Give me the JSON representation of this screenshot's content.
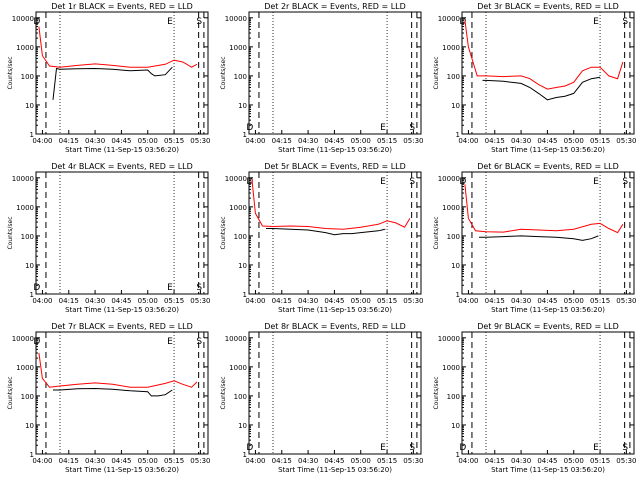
{
  "colors": {
    "events": "#000000",
    "lld": "#ff0000",
    "axes": "#000000"
  },
  "common": {
    "xlabel": "Start Time (11-Sep-15 03:56:20)",
    "ylabel": "Counts/sec",
    "x_tick_labels": [
      "04:00",
      "04:15",
      "04:30",
      "04:45",
      "05:00",
      "05:15",
      "05:30"
    ],
    "y_tick_labels": [
      "1",
      "10",
      "100",
      "1000",
      "10000"
    ]
  },
  "chart_data": [
    {
      "type": "line",
      "title": "Det 1r BLACK = Events, RED = LLD",
      "ylim": [
        1,
        10000
      ],
      "yscale": "log",
      "empty": false,
      "markers": [
        {
          "x": "04:00",
          "label": "D"
        },
        {
          "x": "05:15",
          "label": "E"
        },
        {
          "x": "05:30",
          "label": "S"
        }
      ],
      "series": [
        {
          "name": "LLD",
          "color": "#ff0000",
          "x": [
            "03:58",
            "04:00",
            "04:04",
            "04:10",
            "04:20",
            "04:30",
            "04:40",
            "04:50",
            "05:00",
            "05:10",
            "05:15",
            "05:20",
            "05:25",
            "05:28"
          ],
          "values": [
            5000,
            500,
            220,
            200,
            230,
            260,
            230,
            200,
            200,
            250,
            350,
            300,
            200,
            250
          ]
        },
        {
          "name": "Events",
          "color": "#000000",
          "x": [
            "04:06",
            "04:08",
            "04:10",
            "04:20",
            "04:30",
            "04:40",
            "04:50",
            "05:00",
            "05:02",
            "05:04",
            "05:10",
            "05:14"
          ],
          "values": [
            15,
            180,
            170,
            175,
            180,
            170,
            150,
            160,
            120,
            100,
            110,
            200
          ]
        }
      ]
    },
    {
      "type": "line",
      "title": "Det 2r BLACK = Events, RED = LLD",
      "ylim": [
        1,
        10000
      ],
      "yscale": "log",
      "empty": true,
      "markers": [
        {
          "x": "04:00",
          "label": "D"
        },
        {
          "x": "05:15",
          "label": "E"
        },
        {
          "x": "05:30",
          "label": "S"
        }
      ],
      "series": []
    },
    {
      "type": "line",
      "title": "Det 3r BLACK = Events, RED = LLD",
      "ylim": [
        1,
        10000
      ],
      "yscale": "log",
      "empty": false,
      "markers": [
        {
          "x": "04:00",
          "label": "D"
        },
        {
          "x": "05:15",
          "label": "E"
        },
        {
          "x": "05:30",
          "label": "S"
        }
      ],
      "series": [
        {
          "name": "LLD",
          "color": "#ff0000",
          "x": [
            "03:58",
            "04:00",
            "04:05",
            "04:10",
            "04:20",
            "04:30",
            "04:35",
            "04:40",
            "04:45",
            "04:50",
            "04:55",
            "05:00",
            "05:05",
            "05:10",
            "05:15",
            "05:20",
            "05:25",
            "05:28"
          ],
          "values": [
            8000,
            1000,
            100,
            100,
            95,
            100,
            80,
            50,
            35,
            40,
            45,
            60,
            150,
            200,
            200,
            100,
            80,
            300
          ]
        },
        {
          "name": "Events",
          "color": "#000000",
          "x": [
            "04:08",
            "04:10",
            "04:20",
            "04:30",
            "04:35",
            "04:40",
            "04:45",
            "04:50",
            "04:55",
            "05:00",
            "05:05",
            "05:10",
            "05:15"
          ],
          "values": [
            70,
            70,
            65,
            55,
            40,
            25,
            15,
            18,
            20,
            25,
            60,
            80,
            90
          ]
        }
      ]
    },
    {
      "type": "line",
      "title": "Det 4r BLACK = Events, RED = LLD",
      "ylim": [
        1,
        10000
      ],
      "yscale": "log",
      "empty": true,
      "markers": [
        {
          "x": "04:00",
          "label": "D"
        },
        {
          "x": "05:15",
          "label": "E"
        },
        {
          "x": "05:30",
          "label": "S"
        }
      ],
      "series": []
    },
    {
      "type": "line",
      "title": "Det 5r BLACK = Events, RED = LLD",
      "ylim": [
        1,
        10000
      ],
      "yscale": "log",
      "empty": false,
      "markers": [
        {
          "x": "04:00",
          "label": "D"
        },
        {
          "x": "05:15",
          "label": "E"
        },
        {
          "x": "05:30",
          "label": "S"
        }
      ],
      "series": [
        {
          "name": "LLD",
          "color": "#ff0000",
          "x": [
            "03:58",
            "04:00",
            "04:04",
            "04:10",
            "04:20",
            "04:30",
            "04:40",
            "04:50",
            "05:00",
            "05:10",
            "05:15",
            "05:20",
            "05:25",
            "05:28"
          ],
          "values": [
            9000,
            600,
            220,
            210,
            220,
            210,
            180,
            170,
            200,
            250,
            330,
            280,
            200,
            400
          ]
        },
        {
          "name": "Events",
          "color": "#000000",
          "x": [
            "04:06",
            "04:10",
            "04:20",
            "04:30",
            "04:40",
            "04:45",
            "04:50",
            "04:55",
            "05:00",
            "05:10",
            "05:14"
          ],
          "values": [
            180,
            180,
            170,
            160,
            130,
            110,
            120,
            120,
            130,
            150,
            170
          ]
        }
      ]
    },
    {
      "type": "line",
      "title": "Det 6r BLACK = Events, RED = LLD",
      "ylim": [
        1,
        10000
      ],
      "yscale": "log",
      "empty": false,
      "markers": [
        {
          "x": "04:00",
          "label": "D"
        },
        {
          "x": "05:15",
          "label": "E"
        },
        {
          "x": "05:30",
          "label": "S"
        }
      ],
      "series": [
        {
          "name": "LLD",
          "color": "#ff0000",
          "x": [
            "03:58",
            "04:00",
            "04:04",
            "04:10",
            "04:20",
            "04:30",
            "04:40",
            "04:50",
            "05:00",
            "05:10",
            "05:15",
            "05:20",
            "05:25",
            "05:28"
          ],
          "values": [
            6000,
            400,
            150,
            140,
            135,
            170,
            160,
            150,
            170,
            250,
            270,
            180,
            130,
            250
          ]
        },
        {
          "name": "Events",
          "color": "#000000",
          "x": [
            "04:06",
            "04:10",
            "04:20",
            "04:30",
            "04:40",
            "04:50",
            "05:00",
            "05:05",
            "05:10",
            "05:14"
          ],
          "values": [
            90,
            90,
            95,
            100,
            95,
            90,
            80,
            70,
            80,
            100
          ]
        }
      ]
    },
    {
      "type": "line",
      "title": "Det 7r BLACK = Events, RED = LLD",
      "ylim": [
        1,
        10000
      ],
      "yscale": "log",
      "empty": false,
      "markers": [
        {
          "x": "04:00",
          "label": "D"
        },
        {
          "x": "05:15",
          "label": "E"
        },
        {
          "x": "05:30",
          "label": "S"
        }
      ],
      "series": [
        {
          "name": "LLD",
          "color": "#ff0000",
          "x": [
            "03:58",
            "04:00",
            "04:04",
            "04:10",
            "04:20",
            "04:30",
            "04:40",
            "04:50",
            "05:00",
            "05:10",
            "05:15",
            "05:20",
            "05:25",
            "05:28"
          ],
          "values": [
            3000,
            400,
            200,
            220,
            250,
            280,
            250,
            200,
            200,
            270,
            330,
            250,
            200,
            300
          ]
        },
        {
          "name": "Events",
          "color": "#000000",
          "x": [
            "04:06",
            "04:10",
            "04:20",
            "04:30",
            "04:40",
            "04:50",
            "05:00",
            "05:02",
            "05:06",
            "05:10",
            "05:14"
          ],
          "values": [
            160,
            160,
            175,
            180,
            170,
            150,
            140,
            100,
            100,
            110,
            160
          ]
        }
      ]
    },
    {
      "type": "line",
      "title": "Det 8r BLACK = Events, RED = LLD",
      "ylim": [
        1,
        10000
      ],
      "yscale": "log",
      "empty": true,
      "markers": [
        {
          "x": "04:00",
          "label": "D"
        },
        {
          "x": "05:15",
          "label": "E"
        },
        {
          "x": "05:30",
          "label": "S"
        }
      ],
      "series": []
    },
    {
      "type": "line",
      "title": "Det 9r BLACK = Events, RED = LLD",
      "ylim": [
        1,
        10000
      ],
      "yscale": "log",
      "empty": true,
      "markers": [
        {
          "x": "04:00",
          "label": "D"
        },
        {
          "x": "05:15",
          "label": "E"
        },
        {
          "x": "05:30",
          "label": "S"
        }
      ],
      "series": []
    }
  ]
}
